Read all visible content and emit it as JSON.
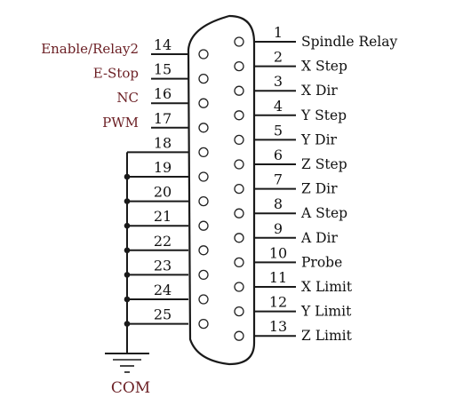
{
  "connector": {
    "top_row": [
      {
        "pin": "1",
        "label": "Spindle Relay"
      },
      {
        "pin": "2",
        "label": "X Step"
      },
      {
        "pin": "3",
        "label": "X Dir"
      },
      {
        "pin": "4",
        "label": "Y Step"
      },
      {
        "pin": "5",
        "label": "Y Dir"
      },
      {
        "pin": "6",
        "label": "Z Step"
      },
      {
        "pin": "7",
        "label": "Z Dir"
      },
      {
        "pin": "8",
        "label": "A Step"
      },
      {
        "pin": "9",
        "label": "A Dir"
      },
      {
        "pin": "10",
        "label": "Probe"
      },
      {
        "pin": "11",
        "label": "X Limit"
      },
      {
        "pin": "12",
        "label": "Y Limit"
      },
      {
        "pin": "13",
        "label": "Z Limit"
      }
    ],
    "bottom_row": [
      {
        "pin": "14",
        "label": "Enable/Relay2"
      },
      {
        "pin": "15",
        "label": "E-Stop"
      },
      {
        "pin": "16",
        "label": "NC"
      },
      {
        "pin": "17",
        "label": "PWM"
      },
      {
        "pin": "18",
        "label": ""
      },
      {
        "pin": "19",
        "label": ""
      },
      {
        "pin": "20",
        "label": ""
      },
      {
        "pin": "21",
        "label": ""
      },
      {
        "pin": "22",
        "label": ""
      },
      {
        "pin": "23",
        "label": ""
      },
      {
        "pin": "24",
        "label": ""
      },
      {
        "pin": "25",
        "label": ""
      }
    ],
    "ground_label": "COM"
  },
  "colors": {
    "line": "#1a1a1a",
    "left_label": "#6b1f24",
    "right_label": "#111111"
  }
}
